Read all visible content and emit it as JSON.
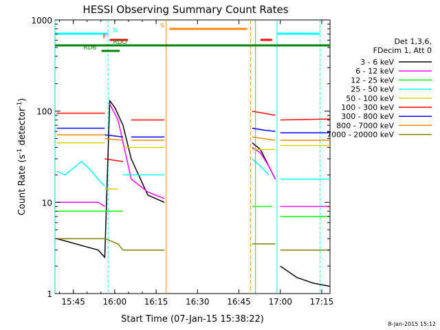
{
  "chart_data": {
    "type": "line",
    "title": "HESSI Observing Summary Count Rates",
    "xlabel": "Start Time (07-Jan-15 15:38:22)",
    "ylabel_main": "Count Rate (s",
    "ylabel_sup1": "-1",
    "ylabel_mid": " detector",
    "ylabel_sup2": "-1",
    "ylabel_end": ")",
    "yscale": "log",
    "ylim": [
      1,
      1000
    ],
    "xlim": [
      "15:38:22",
      "17:18"
    ],
    "x_ticks": [
      "15:45",
      "16:00",
      "16:15",
      "16:30",
      "16:45",
      "17:00",
      "17:15"
    ],
    "y_ticks": [
      "1",
      "10",
      "100",
      "1000"
    ],
    "legend": {
      "placement": "right",
      "header": [
        "Det 1,3,6,",
        "FDecim 1, Att 0"
      ],
      "entries": [
        {
          "label": "3 - 6 keV",
          "color": "#000000"
        },
        {
          "label": "6 - 12 keV",
          "color": "#ff00ff"
        },
        {
          "label": "12 - 25 keV",
          "color": "#00ff00"
        },
        {
          "label": "25 - 50 keV",
          "color": "#00ffff"
        },
        {
          "label": "50 - 100 keV",
          "color": "#e0d000"
        },
        {
          "label": "100 - 300 keV",
          "color": "#ff0000"
        },
        {
          "label": "300 - 800 keV",
          "color": "#0000ff"
        },
        {
          "label": "800 - 7000 keV",
          "color": "#ff8800"
        },
        {
          "label": "7000 - 20000 keV",
          "color": "#808000"
        }
      ]
    },
    "flags": [
      {
        "label": "N",
        "color": "#00ffff"
      },
      {
        "label": "F",
        "color": "#ff0000"
      },
      {
        "label": "RDO",
        "color": "#008000"
      },
      {
        "label": "RD6",
        "color": "#008000"
      },
      {
        "label": "S",
        "color": "#ff8800"
      }
    ],
    "series": [
      {
        "name": "3 - 6 keV",
        "color": "#000000",
        "segments": [
          {
            "x": [
              15.65,
              15.9,
              15.94,
              15.97,
              16.0,
              16.05,
              16.1,
              16.2,
              16.3
            ],
            "y": [
              4,
              3,
              2.5,
              130,
              110,
              70,
              30,
              12,
              10
            ]
          },
          {
            "x": [
              16.83,
              16.88,
              16.93,
              16.97
            ],
            "y": [
              45,
              38,
              25,
              18
            ]
          },
          {
            "x": [
              17.0,
              17.1,
              17.2,
              17.3
            ],
            "y": [
              2,
              1.5,
              1.3,
              1.2
            ]
          }
        ]
      },
      {
        "name": "6 - 12 keV",
        "color": "#ff00ff",
        "segments": [
          {
            "x": [
              15.65,
              15.9,
              15.94
            ],
            "y": [
              10,
              10,
              9
            ]
          },
          {
            "x": [
              15.97,
              16.02,
              16.1,
              16.2,
              16.3
            ],
            "y": [
              120,
              80,
              18,
              13,
              11
            ]
          },
          {
            "x": [
              16.83,
              16.88,
              16.93,
              16.97
            ],
            "y": [
              40,
              35,
              25,
              18
            ]
          },
          {
            "x": [
              17.0,
              17.1,
              17.2,
              17.3
            ],
            "y": [
              9,
              9,
              9,
              9
            ]
          }
        ]
      },
      {
        "name": "12 - 25 keV",
        "color": "#00ff00",
        "segments": [
          {
            "x": [
              15.65,
              15.9,
              15.94
            ],
            "y": [
              8,
              8,
              8
            ]
          },
          {
            "x": [
              15.94,
              16.02,
              16.05
            ],
            "y": [
              8,
              8,
              8
            ]
          },
          {
            "x": [
              16.83,
              16.9,
              16.95
            ],
            "y": [
              9,
              9,
              9
            ]
          },
          {
            "x": [
              17.0,
              17.2,
              17.3
            ],
            "y": [
              7,
              7,
              7
            ]
          }
        ]
      },
      {
        "name": "25 - 50 keV",
        "color": "#00ffff",
        "segments": [
          {
            "x": [
              15.65,
              15.7,
              15.8,
              15.85,
              15.9,
              15.94
            ],
            "y": [
              22,
              20,
              28,
              23,
              18,
              15
            ]
          },
          {
            "x": [
              16.05,
              16.3
            ],
            "y": [
              20,
              20
            ]
          },
          {
            "x": [
              16.83,
              16.88,
              16.93
            ],
            "y": [
              30,
              25,
              20
            ]
          },
          {
            "x": [
              17.0,
              17.3
            ],
            "y": [
              18,
              18
            ]
          }
        ]
      },
      {
        "name": "50 - 100 keV",
        "color": "#e0d000",
        "segments": [
          {
            "x": [
              15.65,
              15.94
            ],
            "y": [
              45,
              45
            ]
          },
          {
            "x": [
              15.94,
              16.02
            ],
            "y": [
              14,
              14
            ]
          },
          {
            "x": [
              16.05,
              16.3
            ],
            "y": [
              40,
              40
            ]
          },
          {
            "x": [
              16.83,
              16.97
            ],
            "y": [
              38,
              38
            ]
          },
          {
            "x": [
              17.0,
              17.3
            ],
            "y": [
              42,
              42
            ]
          }
        ]
      },
      {
        "name": "100 - 300 keV",
        "color": "#ff0000",
        "segments": [
          {
            "x": [
              15.65,
              15.94
            ],
            "y": [
              95,
              95
            ]
          },
          {
            "x": [
              15.94,
              16.05
            ],
            "y": [
              30,
              28
            ]
          },
          {
            "x": [
              16.1,
              16.3
            ],
            "y": [
              80,
              80
            ]
          },
          {
            "x": [
              16.83,
              16.9,
              16.97
            ],
            "y": [
              100,
              95,
              90
            ]
          },
          {
            "x": [
              17.0,
              17.3
            ],
            "y": [
              80,
              82
            ]
          }
        ]
      },
      {
        "name": "300 - 800 keV",
        "color": "#0000ff",
        "segments": [
          {
            "x": [
              15.65,
              15.94
            ],
            "y": [
              65,
              65
            ]
          },
          {
            "x": [
              15.94,
              16.05
            ],
            "y": [
              55,
              52
            ]
          },
          {
            "x": [
              16.1,
              16.3
            ],
            "y": [
              52,
              52
            ]
          },
          {
            "x": [
              16.83,
              16.9,
              16.97
            ],
            "y": [
              65,
              62,
              60
            ]
          },
          {
            "x": [
              17.0,
              17.3
            ],
            "y": [
              58,
              58
            ]
          }
        ]
      },
      {
        "name": "800 - 7000 keV",
        "color": "#ff8800",
        "segments": [
          {
            "x": [
              15.65,
              15.94
            ],
            "y": [
              55,
              55
            ]
          },
          {
            "x": [
              15.94,
              16.05
            ],
            "y": [
              50,
              48
            ]
          },
          {
            "x": [
              16.1,
              16.3
            ],
            "y": [
              48,
              48
            ]
          },
          {
            "x": [
              16.83,
              16.9,
              16.97
            ],
            "y": [
              52,
              50,
              48
            ]
          },
          {
            "x": [
              17.0,
              17.3
            ],
            "y": [
              48,
              48
            ]
          }
        ]
      },
      {
        "name": "7000 - 20000 keV",
        "color": "#808000",
        "segments": [
          {
            "x": [
              15.65,
              15.9,
              15.94
            ],
            "y": [
              4,
              4,
              4
            ]
          },
          {
            "x": [
              15.94,
              16.02,
              16.05
            ],
            "y": [
              4,
              3.5,
              3
            ]
          },
          {
            "x": [
              16.05,
              16.3
            ],
            "y": [
              3,
              3
            ]
          },
          {
            "x": [
              16.83,
              16.97
            ],
            "y": [
              3.5,
              3.5
            ]
          },
          {
            "x": [
              17.0,
              17.3
            ],
            "y": [
              3,
              3
            ]
          }
        ]
      }
    ]
  },
  "footer": {
    "date_stamp": "8-Jan-2015 15:12"
  }
}
